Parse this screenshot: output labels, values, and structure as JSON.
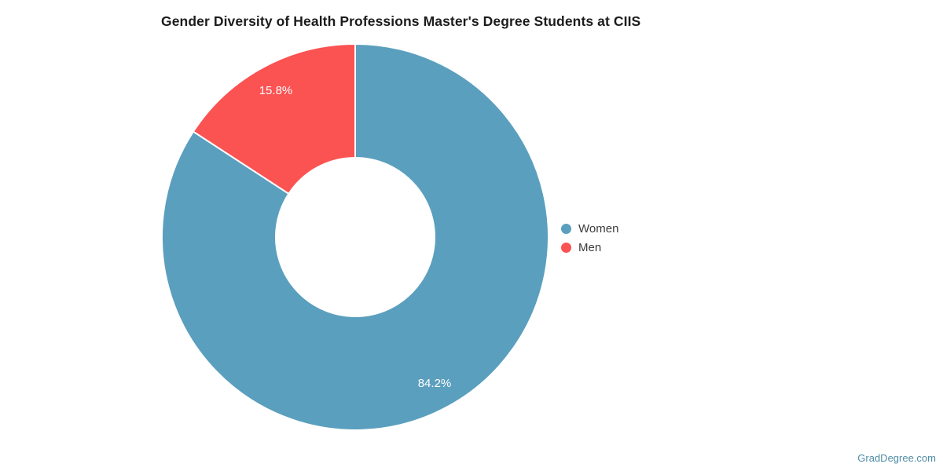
{
  "page": {
    "watermark": "GradDegree.com"
  },
  "chart_data": {
    "type": "pie",
    "subtype": "donut",
    "title": "Gender Diversity of Health Professions Master's Degree Students at CIIS",
    "categories": [
      "Women",
      "Men"
    ],
    "values": [
      84.2,
      15.8
    ],
    "slice_labels": [
      "84.2%",
      "15.8%"
    ],
    "colors": [
      "#5b9fbe",
      "#fb5252"
    ],
    "slice_label_color": "#ffffff",
    "legend": {
      "position": "right",
      "items": [
        "Women",
        "Men"
      ]
    },
    "start_angle_deg": 0,
    "direction": "clockwise",
    "donut_hole_ratio": 0.41,
    "grid": false
  }
}
